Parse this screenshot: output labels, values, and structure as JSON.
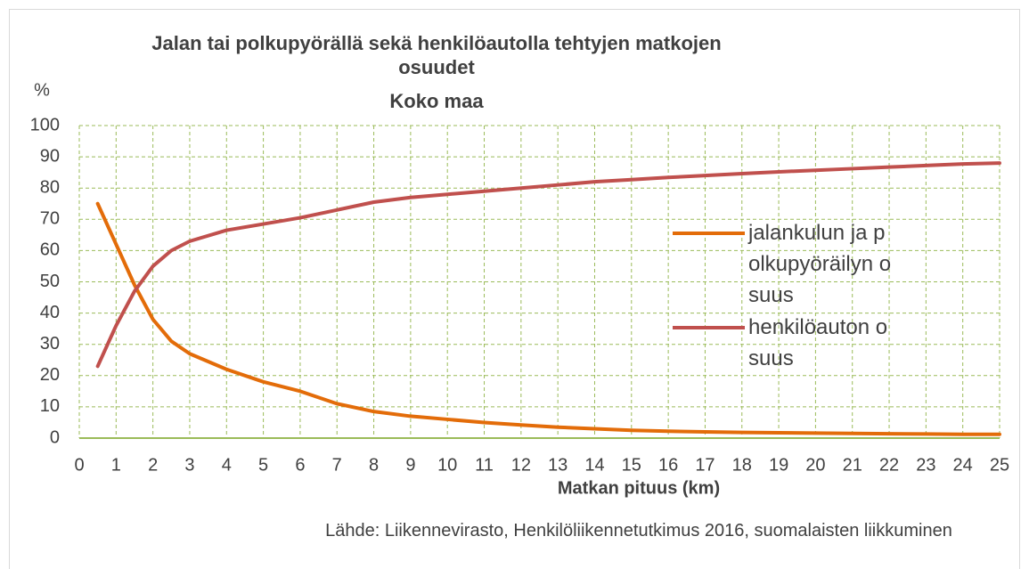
{
  "chart_data": {
    "type": "line",
    "title": "Jalan tai polkupyörällä sekä henkilöautolla tehtyjen matkojen osuudet",
    "subtitle": "Koko maa",
    "y_label": "%",
    "x_label": "Matkan pituus (km)",
    "source": "Lähde: Liikennevirasto, Henkilöliikennetutkimus 2016, suomalaisten liikkuminen",
    "x": [
      0.5,
      1,
      1.5,
      2,
      2.5,
      3,
      4,
      5,
      6,
      7,
      8,
      9,
      10,
      11,
      12,
      13,
      14,
      15,
      16,
      17,
      18,
      19,
      20,
      21,
      22,
      23,
      24,
      25
    ],
    "series": [
      {
        "name": "jalankulun ja polkupyöräilyn osuus",
        "color": "#e36c09",
        "values": [
          75,
          62,
          49,
          38,
          31,
          27,
          22,
          18,
          15,
          11,
          8.5,
          7,
          6,
          5,
          4.2,
          3.5,
          3,
          2.5,
          2.2,
          2,
          1.8,
          1.7,
          1.6,
          1.5,
          1.4,
          1.3,
          1.2,
          1.2
        ]
      },
      {
        "name": "henkilöauton osuus",
        "color": "#c0504d",
        "values": [
          23,
          36,
          47,
          55,
          60,
          63,
          66.5,
          68.5,
          70.5,
          73,
          75.5,
          77,
          78,
          79,
          80,
          81,
          82,
          82.7,
          83.4,
          84,
          84.6,
          85.2,
          85.7,
          86.2,
          86.7,
          87.2,
          87.7,
          88
        ]
      }
    ],
    "xlim": [
      0,
      25
    ],
    "xticks": [
      0,
      1,
      2,
      3,
      4,
      5,
      6,
      7,
      8,
      9,
      10,
      11,
      12,
      13,
      14,
      15,
      16,
      17,
      18,
      19,
      20,
      21,
      22,
      23,
      24,
      25
    ],
    "ylim": [
      0,
      100
    ],
    "yticks": [
      0,
      10,
      20,
      30,
      40,
      50,
      60,
      70,
      80,
      90,
      100
    ],
    "grid": true,
    "grid_color": "#9bbb59",
    "legend": "right"
  }
}
